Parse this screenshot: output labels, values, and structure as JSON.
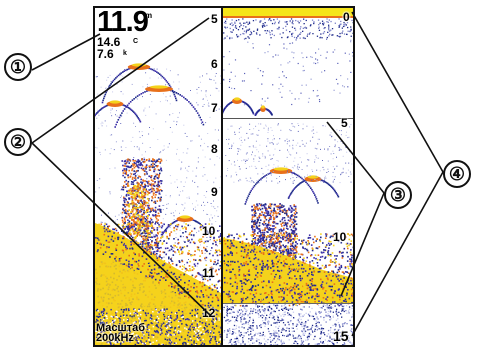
{
  "readouts": {
    "depth": "11.9",
    "depth_unit": "m",
    "temperature": "14.6",
    "temperature_unit": "C",
    "speed": "7.6",
    "speed_unit": "k"
  },
  "scale_label": "Масштаб",
  "frequency_label": "200kHz",
  "left_depth_scale": [
    "5",
    "6",
    "7",
    "8",
    "9",
    "10",
    "11",
    "12"
  ],
  "right_depth_scale": {
    "top": "0",
    "zoom_top": "5",
    "zoom_mid": "10",
    "bottom": "15"
  },
  "callouts": [
    "①",
    "②",
    "③",
    "④"
  ],
  "colors": {
    "bottom_strong": "#f4d21c",
    "target_orange": "#e8701a",
    "return_weak": "#1e2a8a",
    "return_mid": "#3b2fa8",
    "surface_band": "#f5e51a"
  }
}
